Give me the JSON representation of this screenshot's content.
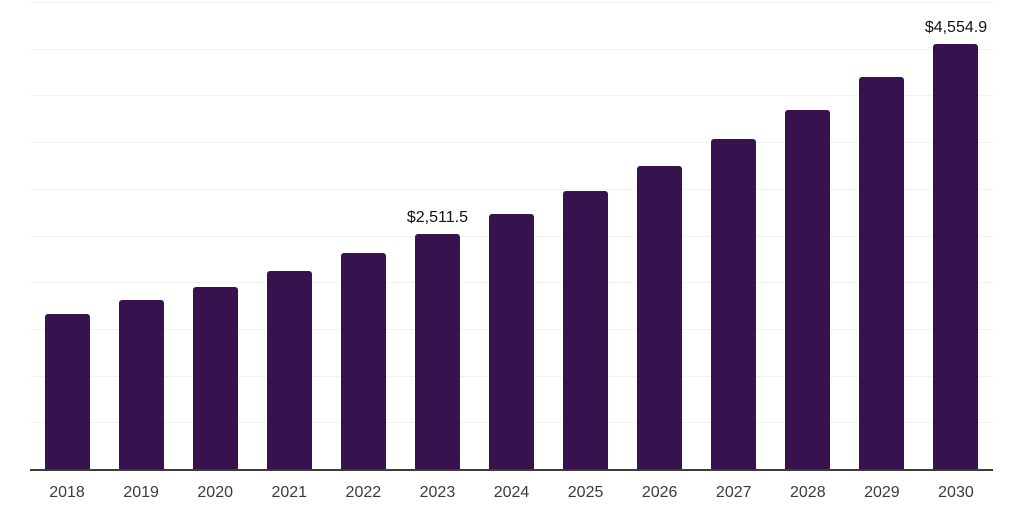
{
  "chart": {
    "background": "#ffffff"
  },
  "chart_data": {
    "type": "bar",
    "title": "",
    "xlabel": "",
    "ylabel": "",
    "categories": [
      "2018",
      "2019",
      "2020",
      "2021",
      "2022",
      "2023",
      "2024",
      "2025",
      "2026",
      "2027",
      "2028",
      "2029",
      "2030"
    ],
    "values": [
      1660,
      1810,
      1950,
      2120,
      2310,
      2511.5,
      2730,
      2980,
      3245,
      3535,
      3845,
      4200,
      4554.9
    ],
    "value_labels": [
      {
        "category": "2023",
        "text": "$2,511.5"
      },
      {
        "category": "2030",
        "text": "$4,554.9"
      }
    ],
    "ylim": [
      0,
      5000
    ],
    "grid_step": 500,
    "grid": "on",
    "legend": "none",
    "y_tick_labels_visible": false,
    "bar_color": "#36124f",
    "axis_color": "#3c3c3c",
    "grid_color": "#f2f2f2",
    "tick_label_color": "#3a3a3a",
    "value_label_color": "#111111"
  }
}
